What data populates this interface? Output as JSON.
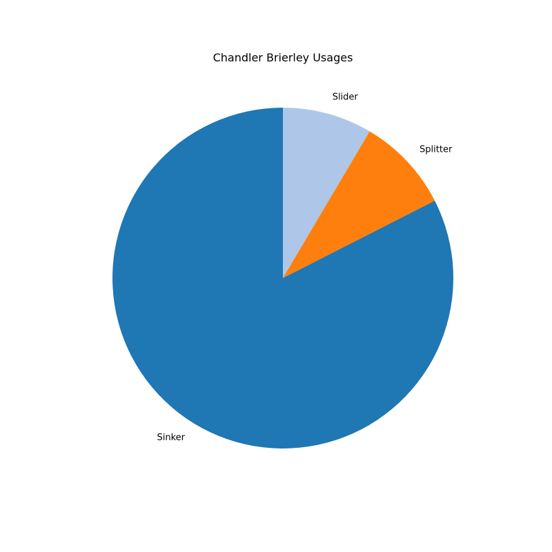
{
  "chart_data": {
    "type": "pie",
    "title": "Chandler Brierley Usages",
    "slices": [
      {
        "label": "Sinker",
        "value": 82.5,
        "color": "#1f77b4"
      },
      {
        "label": "Splitter",
        "value": 9.0,
        "color": "#ff7f0e"
      },
      {
        "label": "Slider",
        "value": 8.5,
        "color": "#aec7e8"
      }
    ],
    "start_angle_deg": 90,
    "direction": "counterclockwise",
    "legend": "none"
  }
}
